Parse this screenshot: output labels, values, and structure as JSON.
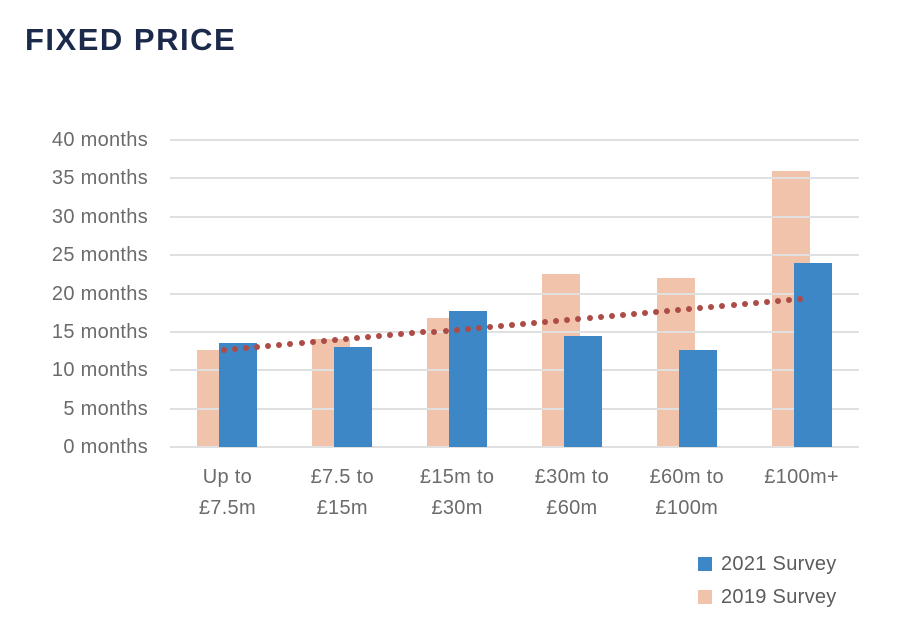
{
  "title": "FIXED PRICE",
  "colors": {
    "series_2021": "#3d87c6",
    "series_2019": "#f1c3ab",
    "trend": "#ad4b47",
    "title": "#1b2a4a",
    "axis_text": "#6b6b6b",
    "gridline": "#e0e0e0",
    "legend_text": "#5c5c5c"
  },
  "legend": {
    "position": "bottom-right",
    "items": [
      {
        "label": "2021 Survey",
        "color_key": "series_2021"
      },
      {
        "label": "2019 Survey",
        "color_key": "series_2019"
      }
    ]
  },
  "chart_data": {
    "type": "bar",
    "title": "FIXED PRICE",
    "categories": [
      "Up to £7.5m",
      "£7.5 to £15m",
      "£15m to £30m",
      "£30m to £60m",
      "£60m to £100m",
      "£100m+"
    ],
    "category_label_lines": [
      [
        "Up to",
        "£7.5m"
      ],
      [
        "£7.5 to",
        "£15m"
      ],
      [
        "£15m to",
        "£30m"
      ],
      [
        "£30m to",
        "£60m"
      ],
      [
        "£60m to",
        "£100m"
      ],
      [
        "£100m+"
      ]
    ],
    "series": [
      {
        "name": "2021 Survey",
        "color_key": "series_2021",
        "values": [
          13.5,
          13.0,
          17.7,
          14.4,
          12.7,
          24.0
        ]
      },
      {
        "name": "2019 Survey",
        "color_key": "series_2019",
        "values": [
          12.7,
          14.1,
          16.8,
          22.5,
          22.0,
          36.0
        ]
      }
    ],
    "trendline": {
      "series": "2021 Survey",
      "style": "dotted",
      "color_key": "trend",
      "start_value": 12.6,
      "end_value": 19.3
    },
    "ylabel": "",
    "xlabel": "",
    "ylim": [
      0,
      40
    ],
    "ytick_step": 5,
    "ytick_suffix": " months",
    "ytick_labels": [
      "0 months",
      "5 months",
      "10 months",
      "15 months",
      "20 months",
      "25 months",
      "30 months",
      "35 months",
      "40 months"
    ],
    "grid": "horizontal",
    "legend_position": "bottom-right"
  }
}
